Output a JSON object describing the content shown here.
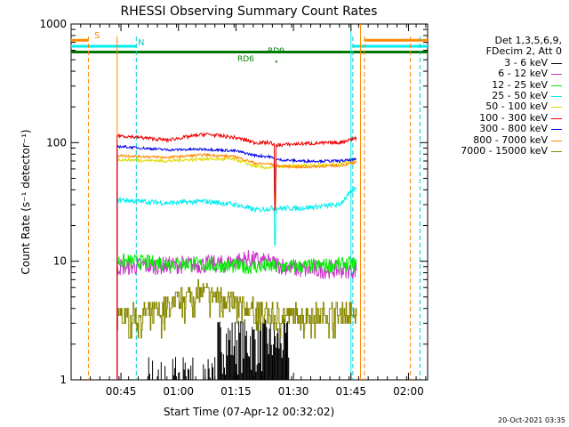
{
  "chart_data": {
    "type": "line",
    "title": "RHESSI Observing Summary Count Rates",
    "xlabel": "Start Time (07-Apr-12 00:32:02)",
    "ylabel": "Count Rate (s⁻¹ detector⁻¹)",
    "y_scale": "log",
    "ylim": [
      1,
      1000
    ],
    "xlim_minutes": [
      0,
      93
    ],
    "x_ticks": [
      {
        "minute": 13,
        "label": "00:45"
      },
      {
        "minute": 28,
        "label": "01:00"
      },
      {
        "minute": 43,
        "label": "01:15"
      },
      {
        "minute": 58,
        "label": "01:30"
      },
      {
        "minute": 73,
        "label": "01:45"
      },
      {
        "minute": 88,
        "label": "02:00"
      }
    ],
    "y_ticks": [
      {
        "value": 1,
        "label": "1"
      },
      {
        "value": 10,
        "label": "10"
      },
      {
        "value": 100,
        "label": "100"
      },
      {
        "value": 1000,
        "label": "1000"
      }
    ],
    "legend_header": [
      "Det 1,3,5,6,9,",
      "FDecim 2, Att 0"
    ],
    "legend_position": "right",
    "series": [
      {
        "name": "3 - 6 keV",
        "color": "#000000"
      },
      {
        "name": "6 - 12 keV",
        "color": "#cc33cc"
      },
      {
        "name": "12 - 25 keV",
        "color": "#00ee00"
      },
      {
        "name": "25 - 50 keV",
        "color": "#00eeee"
      },
      {
        "name": "50 - 100 keV",
        "color": "#dddd00"
      },
      {
        "name": "100 - 300 keV",
        "color": "#ee0000"
      },
      {
        "name": "300 - 800 keV",
        "color": "#0000ee"
      },
      {
        "name": "800 - 7000 keV",
        "color": "#ff8800"
      },
      {
        "name": "7000 - 15000 keV",
        "color": "#888800"
      }
    ],
    "flag_labels": {
      "saa": "S",
      "night": "N",
      "rd9": "RD9",
      "rd6": "RD6"
    },
    "footer_date": "20-Oct-2021 03:35"
  }
}
